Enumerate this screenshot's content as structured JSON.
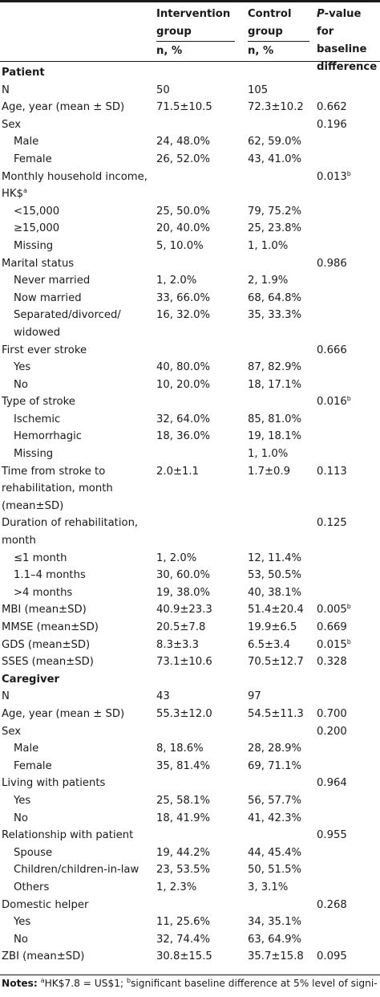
{
  "header": {
    "intervention": "Intervention group",
    "control": "Control group",
    "pvalue_italic": "P",
    "pvalue_rest": "-value for baseline difference",
    "n_percent": "n, %"
  },
  "rows": [
    {
      "type": "section",
      "label": "Patient"
    },
    {
      "type": "row",
      "label": "N",
      "a": "50",
      "b": "105",
      "p": ""
    },
    {
      "type": "row",
      "label": "Age, year (mean ± SD)",
      "a": "71.5±10.5",
      "b": "72.3±10.2",
      "p": "0.662"
    },
    {
      "type": "row",
      "label": "Sex",
      "a": "",
      "b": "",
      "p": "0.196"
    },
    {
      "type": "sub",
      "label": "Male",
      "a": "24, 48.0%",
      "b": "62, 59.0%",
      "p": ""
    },
    {
      "type": "sub",
      "label": "Female",
      "a": "26, 52.0%",
      "b": "43, 41.0%",
      "p": ""
    },
    {
      "type": "row",
      "label": "Monthly household income, HK$",
      "sup": "a",
      "a": "",
      "b": "",
      "p": "0.013",
      "psup": "b"
    },
    {
      "type": "sub",
      "label": "<15,000",
      "a": "25, 50.0%",
      "b": "79, 75.2%",
      "p": ""
    },
    {
      "type": "sub",
      "label": "≥15,000",
      "a": "20, 40.0%",
      "b": "25, 23.8%",
      "p": ""
    },
    {
      "type": "sub",
      "label": "Missing",
      "a": "5, 10.0%",
      "b": "1, 1.0%",
      "p": ""
    },
    {
      "type": "row",
      "label": "Marital status",
      "a": "",
      "b": "",
      "p": "0.986"
    },
    {
      "type": "sub",
      "label": "Never married",
      "a": "1, 2.0%",
      "b": "2, 1.9%",
      "p": ""
    },
    {
      "type": "sub",
      "label": "Now married",
      "a": "33, 66.0%",
      "b": "68, 64.8%",
      "p": ""
    },
    {
      "type": "sub",
      "label": "Separated/divorced/ widowed",
      "a": "16, 32.0%",
      "b": "35, 33.3%",
      "p": ""
    },
    {
      "type": "row",
      "label": "First ever stroke",
      "a": "",
      "b": "",
      "p": "0.666"
    },
    {
      "type": "sub",
      "label": "Yes",
      "a": "40, 80.0%",
      "b": "87, 82.9%",
      "p": ""
    },
    {
      "type": "sub",
      "label": "No",
      "a": "10, 20.0%",
      "b": "18, 17.1%",
      "p": ""
    },
    {
      "type": "row",
      "label": "Type of stroke",
      "a": "",
      "b": "",
      "p": "0.016",
      "psup": "b"
    },
    {
      "type": "sub",
      "label": "Ischemic",
      "a": "32, 64.0%",
      "b": "85, 81.0%",
      "p": ""
    },
    {
      "type": "sub",
      "label": "Hemorrhagic",
      "a": "18, 36.0%",
      "b": "19, 18.1%",
      "p": ""
    },
    {
      "type": "sub",
      "label": "Missing",
      "a": "",
      "b": "1, 1.0%",
      "p": ""
    },
    {
      "type": "row",
      "label": "Time from stroke to rehabilitation, month (mean±SD)",
      "a": "2.0±1.1",
      "b": "1.7±0.9",
      "p": "0.113"
    },
    {
      "type": "row",
      "label": "Duration of rehabilitation, month",
      "a": "",
      "b": "",
      "p": "0.125"
    },
    {
      "type": "sub",
      "label": "≤1 month",
      "a": "1, 2.0%",
      "b": "12, 11.4%",
      "p": ""
    },
    {
      "type": "sub",
      "label": "1.1–4 months",
      "a": "30, 60.0%",
      "b": "53, 50.5%",
      "p": ""
    },
    {
      "type": "sub",
      "label": ">4 months",
      "a": "19, 38.0%",
      "b": "40, 38.1%",
      "p": ""
    },
    {
      "type": "row",
      "label": "MBI (mean±SD)",
      "a": "40.9±23.3",
      "b": "51.4±20.4",
      "p": "0.005",
      "psup": "b"
    },
    {
      "type": "row",
      "label": "MMSE (mean±SD)",
      "a": "20.5±7.8",
      "b": "19.9±6.5",
      "p": "0.669"
    },
    {
      "type": "row",
      "label": "GDS (mean±SD)",
      "a": "8.3±3.3",
      "b": "6.5±3.4",
      "p": "0.015",
      "psup": "b"
    },
    {
      "type": "row",
      "label": "SSES (mean±SD)",
      "a": "73.1±10.6",
      "b": "70.5±12.7",
      "p": "0.328"
    },
    {
      "type": "section",
      "label": "Caregiver"
    },
    {
      "type": "row",
      "label": "N",
      "a": "43",
      "b": "97",
      "p": ""
    },
    {
      "type": "row",
      "label": "Age, year (mean ± SD)",
      "a": "55.3±12.0",
      "b": "54.5±11.3",
      "p": "0.700"
    },
    {
      "type": "row",
      "label": "Sex",
      "a": "",
      "b": "",
      "p": "0.200"
    },
    {
      "type": "sub",
      "label": "Male",
      "a": "8, 18.6%",
      "b": "28, 28.9%",
      "p": ""
    },
    {
      "type": "sub",
      "label": "Female",
      "a": "35, 81.4%",
      "b": "69, 71.1%",
      "p": ""
    },
    {
      "type": "row",
      "label": "Living with patients",
      "a": "",
      "b": "",
      "p": "0.964"
    },
    {
      "type": "sub",
      "label": "Yes",
      "a": "25, 58.1%",
      "b": "56, 57.7%",
      "p": ""
    },
    {
      "type": "sub",
      "label": "No",
      "a": "18, 41.9%",
      "b": "41, 42.3%",
      "p": ""
    },
    {
      "type": "row",
      "label": "Relationship with patient",
      "a": "",
      "b": "",
      "p": "0.955"
    },
    {
      "type": "sub",
      "label": "Spouse",
      "a": "19, 44.2%",
      "b": "44, 45.4%",
      "p": ""
    },
    {
      "type": "sub",
      "label": "Children/children-in-law",
      "a": "23, 53.5%",
      "b": "50, 51.5%",
      "p": ""
    },
    {
      "type": "sub",
      "label": "Others",
      "a": "1, 2.3%",
      "b": "3, 3.1%",
      "p": ""
    },
    {
      "type": "row",
      "label": "Domestic helper",
      "a": "",
      "b": "",
      "p": "0.268"
    },
    {
      "type": "sub",
      "label": "Yes",
      "a": "11, 25.6%",
      "b": "34, 35.1%",
      "p": ""
    },
    {
      "type": "sub",
      "label": "No",
      "a": "32, 74.4%",
      "b": "63, 64.9%",
      "p": ""
    },
    {
      "type": "row",
      "label": "ZBI (mean±SD)",
      "a": "30.8±15.5",
      "b": "35.7±15.8",
      "p": "0.095"
    }
  ],
  "notes": {
    "label": "Notes:",
    "sup_a": "a",
    "text_a": "HK$7.8 = US$1; ",
    "sup_b": "b",
    "text_b": "significant baseline difference at 5% level of signi-"
  }
}
